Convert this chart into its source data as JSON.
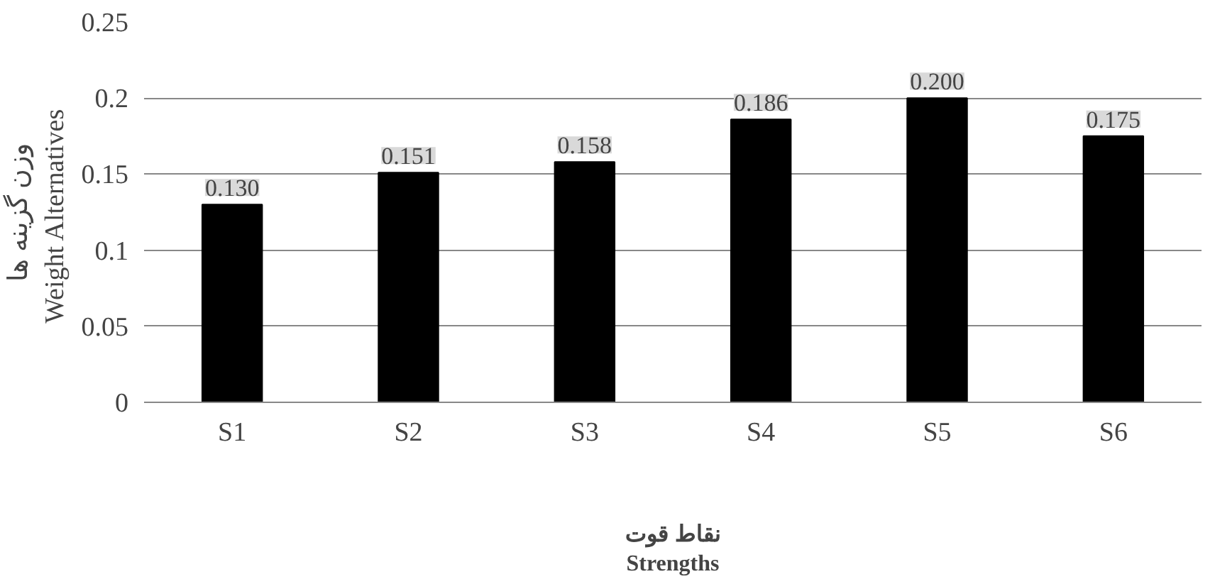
{
  "chart_data": {
    "type": "bar",
    "xlabel": "نقاط قوت\nStrengths",
    "ylabel": "وزن گزینه ها\nWeight  Alternatives",
    "categories": [
      "S1",
      "S2",
      "S3",
      "S4",
      "S5",
      "S6"
    ],
    "values": [
      0.13,
      0.151,
      0.158,
      0.186,
      0.2,
      0.175
    ],
    "value_labels": [
      "0.130",
      "0.151",
      "0.158",
      "0.186",
      "0.200",
      "0.175"
    ],
    "color": "#000000",
    "ylim": [
      0,
      0.25
    ],
    "yticks": [
      0,
      0.05,
      0.1,
      0.15,
      0.2,
      0.25
    ],
    "grid": "y"
  }
}
